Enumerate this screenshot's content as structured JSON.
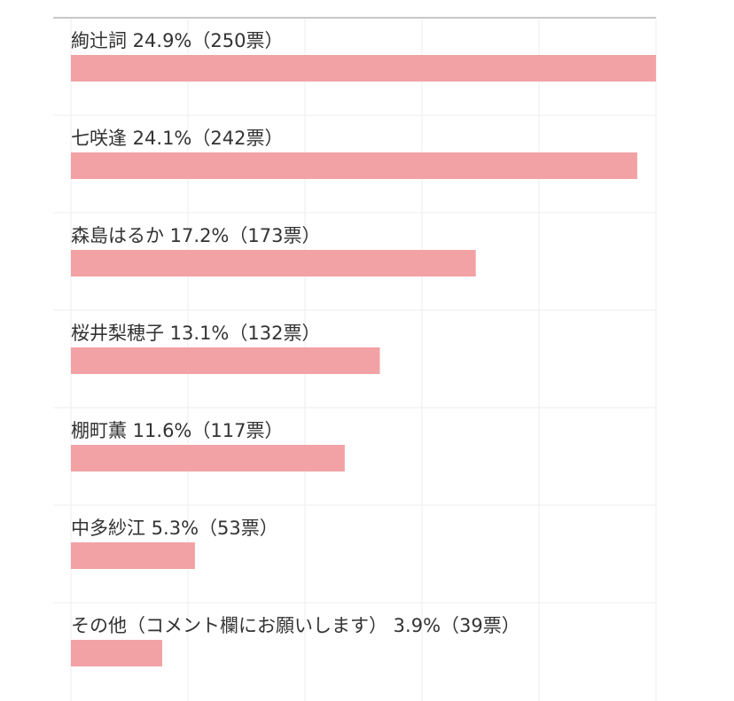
{
  "chart_data": {
    "type": "bar",
    "orientation": "horizontal",
    "title": "",
    "xlabel": "",
    "ylabel": "",
    "xlim": [
      0,
      250
    ],
    "grid": true,
    "legend": "none",
    "bar_color": "#f2a2a4",
    "grid_color": "#eeeeee",
    "top_rule_color": "#c8c8c8",
    "text_color": "#333333",
    "categories": [
      "絢辻詞 24.9%（250票）",
      "七咲逢 24.1%（242票）",
      "森島はるか 17.2%（173票）",
      "桜井梨穂子 13.1%（132票）",
      "棚町薫 11.6%（117票）",
      "中多紗江 5.3%（53票）",
      "その他（コメント欄にお願いします） 3.9%（39票）"
    ],
    "values": [
      250,
      242,
      173,
      132,
      117,
      53,
      39
    ]
  }
}
